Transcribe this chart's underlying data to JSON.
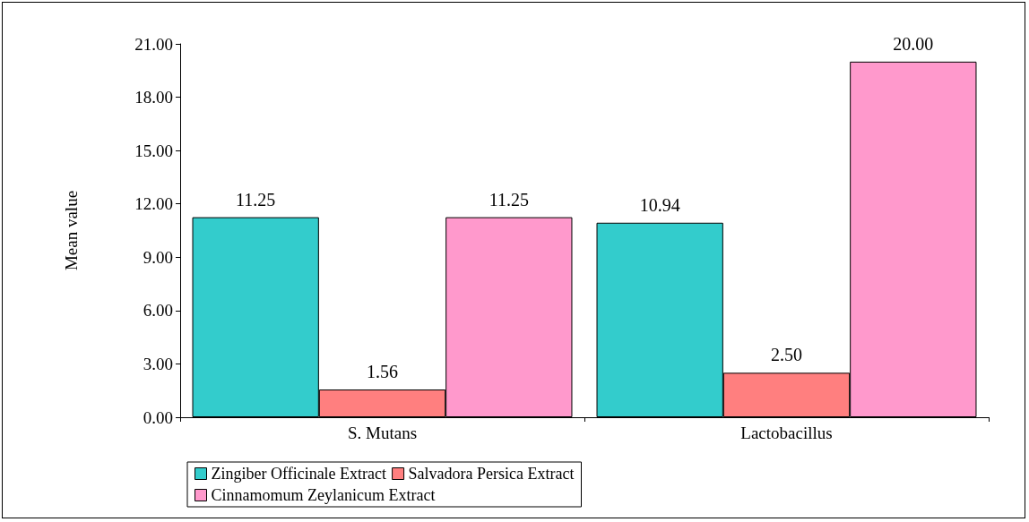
{
  "chart_data": {
    "type": "bar",
    "ylabel": "Mean value",
    "categories": [
      "S. Mutans",
      "Lactobacillus"
    ],
    "series": [
      {
        "name": "Zingiber Officinale Extract",
        "color": "#33cccc",
        "values": [
          11.25,
          10.94
        ],
        "value_labels": [
          "11.25",
          "10.94"
        ]
      },
      {
        "name": "Salvadora Persica Extract",
        "color": "#ff7f7f",
        "values": [
          1.56,
          2.5
        ],
        "value_labels": [
          "1.56",
          "2.50"
        ]
      },
      {
        "name": "Cinnamomum Zeylanicum Extract",
        "color": "#ff99cc",
        "values": [
          11.25,
          20
        ],
        "value_labels": [
          "11.25",
          "20.00"
        ]
      }
    ],
    "ylim": [
      0,
      21
    ],
    "yticks": [
      {
        "value": 0,
        "label": "0.00"
      },
      {
        "value": 3,
        "label": "3.00"
      },
      {
        "value": 6,
        "label": "6.00"
      },
      {
        "value": 9,
        "label": "9.00"
      },
      {
        "value": 12,
        "label": "12.00"
      },
      {
        "value": 15,
        "label": "15.00"
      },
      {
        "value": 18,
        "label": "18.00"
      },
      {
        "value": 21,
        "label": "21.00"
      }
    ],
    "grid": false,
    "legend": "bottom"
  }
}
